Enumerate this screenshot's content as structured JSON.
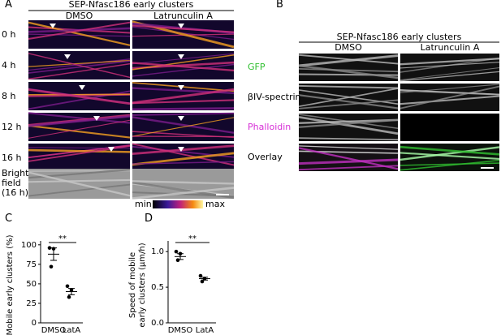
{
  "panel_a": {
    "label": "A",
    "title": "SEP-Nfasc186 early clusters",
    "columns": [
      "DMSO",
      "Latrunculin A"
    ],
    "rows": [
      "0 h",
      "4 h",
      "8 h",
      "12 h",
      "16 h",
      "Bright field (16 h)"
    ],
    "colorbar": [
      "min",
      "max"
    ]
  },
  "panel_b": {
    "label": "B",
    "title": "SEP-Nfasc186 early clusters",
    "columns": [
      "DMSO",
      "Latrunculin A"
    ],
    "rows": [
      "GFP",
      "βIV-spectrin",
      "Phalloidin",
      "Overlay"
    ]
  },
  "chart_data": [
    {
      "type": "dot",
      "label": "C",
      "ylabel": "Mobile early clusters (%)",
      "categories": [
        "DMSO",
        "LatA"
      ],
      "points": [
        [
          96,
          95,
          72
        ],
        [
          47,
          42,
          33
        ]
      ],
      "means": [
        88,
        40
      ],
      "errors": [
        8,
        4
      ],
      "significance": "**",
      "ylim": [
        0,
        105
      ],
      "yticks": [
        0,
        25,
        50,
        75,
        100
      ]
    },
    {
      "type": "dot",
      "label": "D",
      "ylabel": "Speed of mobile early clusters (µm/h)",
      "categories": [
        "DMSO",
        "LatA"
      ],
      "points": [
        [
          1.0,
          0.97,
          0.88
        ],
        [
          0.66,
          0.62,
          0.58
        ]
      ],
      "means": [
        0.93,
        0.62
      ],
      "errors": [
        0.04,
        0.02
      ],
      "significance": "**",
      "ylim": [
        0,
        1.15
      ],
      "yticks": [
        {
          "value": 0,
          "label": "0.0"
        },
        {
          "value": 0.5,
          "label": "0.5"
        },
        {
          "value": 1,
          "label": "1.0"
        }
      ]
    }
  ]
}
